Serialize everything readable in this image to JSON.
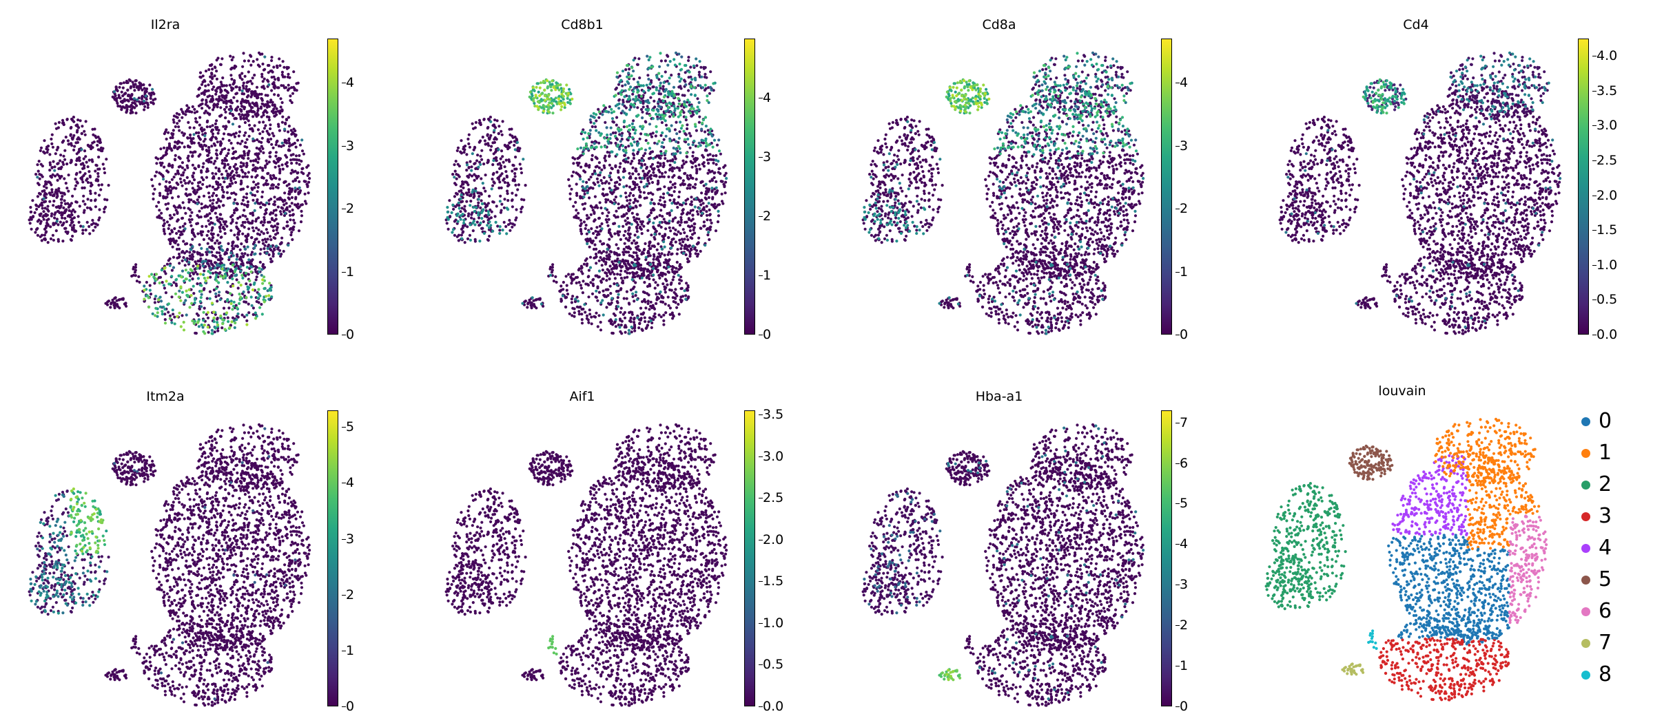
{
  "chart_data": [
    {
      "type": "scatter",
      "title": "Il2ra",
      "colorbar": {
        "cmap": "viridis",
        "range": [
          0,
          4.7
        ],
        "ticks": [
          "0",
          "1",
          "2",
          "3",
          "4"
        ]
      },
      "highlight_region": "lower-center"
    },
    {
      "type": "scatter",
      "title": "Cd8b1",
      "colorbar": {
        "cmap": "viridis",
        "range": [
          0,
          5.0
        ],
        "ticks": [
          "0",
          "1",
          "2",
          "3",
          "4"
        ]
      },
      "highlight_region": "top-left-cluster, upper-right"
    },
    {
      "type": "scatter",
      "title": "Cd8a",
      "colorbar": {
        "cmap": "viridis",
        "range": [
          0,
          4.7
        ],
        "ticks": [
          "0",
          "1",
          "2",
          "3",
          "4"
        ]
      },
      "highlight_region": "top-left-cluster, upper-right"
    },
    {
      "type": "scatter",
      "title": "Cd4",
      "colorbar": {
        "cmap": "viridis",
        "range": [
          0,
          4.25
        ],
        "ticks": [
          "0.0",
          "0.5",
          "1.0",
          "1.5",
          "2.0",
          "2.5",
          "3.0",
          "3.5",
          "4.0"
        ]
      },
      "highlight_region": "top-left-cluster, top"
    },
    {
      "type": "scatter",
      "title": "Itm2a",
      "colorbar": {
        "cmap": "viridis",
        "range": [
          0,
          5.3
        ],
        "ticks": [
          "0",
          "1",
          "2",
          "3",
          "4",
          "5"
        ]
      },
      "highlight_region": "left-cluster"
    },
    {
      "type": "scatter",
      "title": "Aif1",
      "colorbar": {
        "cmap": "viridis",
        "range": [
          0,
          3.55
        ],
        "ticks": [
          "0.0",
          "0.5",
          "1.0",
          "1.5",
          "2.0",
          "2.5",
          "3.0",
          "3.5"
        ]
      },
      "highlight_region": "small-bottom-left-island"
    },
    {
      "type": "scatter",
      "title": "Hba-a1",
      "colorbar": {
        "cmap": "viridis",
        "range": [
          0,
          7.3
        ],
        "ticks": [
          "0",
          "1",
          "2",
          "3",
          "4",
          "5",
          "6",
          "7"
        ]
      },
      "highlight_region": "small-bottom-left-island"
    },
    {
      "type": "scatter",
      "title": "louvain",
      "legend": [
        {
          "label": "0",
          "color": "#1f77b4"
        },
        {
          "label": "1",
          "color": "#ff7f0e"
        },
        {
          "label": "2",
          "color": "#279e68"
        },
        {
          "label": "3",
          "color": "#d62728"
        },
        {
          "label": "4",
          "color": "#aa40fc"
        },
        {
          "label": "5",
          "color": "#8c564b"
        },
        {
          "label": "6",
          "color": "#e377c2"
        },
        {
          "label": "7",
          "color": "#b5bd61"
        },
        {
          "label": "8",
          "color": "#17becf"
        }
      ]
    }
  ]
}
